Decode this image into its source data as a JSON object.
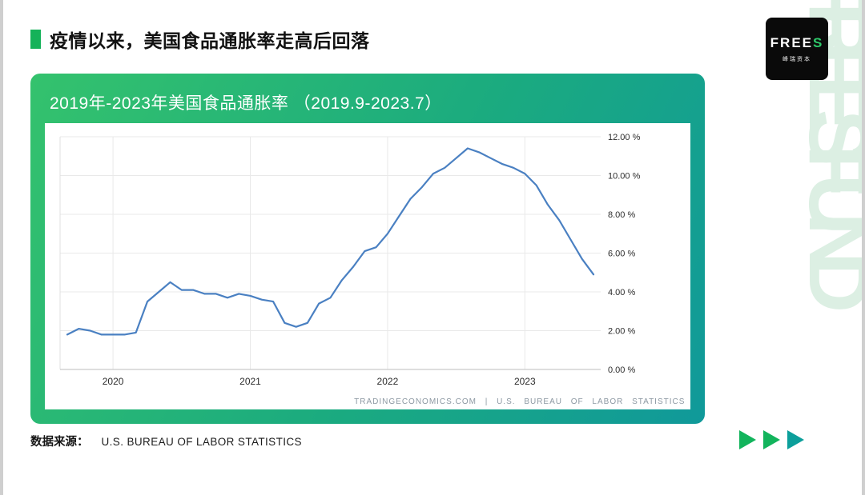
{
  "slide": {
    "title": "疫情以来，美国食品通胀率走高后回落"
  },
  "logo": {
    "brand_main": "FREE",
    "brand_accent": "S",
    "sub": "峰瑞资本"
  },
  "watermark": {
    "text": "FREES FUND"
  },
  "card": {
    "header": "2019年-2023年美国食品通胀率 （2019.9-2023.7）"
  },
  "footer": {
    "source_label": "数据来源：",
    "source_value": "U.S. BUREAU OF LABOR STATISTICS"
  },
  "colors": {
    "accent_green": "#15b259",
    "card_gradient": [
      "#34c26d",
      "#1bab7f",
      "#10999a"
    ],
    "watermark": "#dcefe3",
    "logo_accent": "#2ec96a",
    "arrows": [
      "#12b45c",
      "#12b45c",
      "#0c9f9b"
    ]
  },
  "chart_data": {
    "type": "line",
    "title": "2019年-2023年美国食品通胀率（2019.9-2023.7）",
    "xlabel": "",
    "ylabel": "",
    "ylim": [
      0,
      12
    ],
    "grid": true,
    "legend": "none",
    "y_axis_side": "right",
    "line_color": "#4a80c2",
    "x": [
      "2019-09",
      "2019-10",
      "2019-11",
      "2019-12",
      "2020-01",
      "2020-02",
      "2020-03",
      "2020-04",
      "2020-05",
      "2020-06",
      "2020-07",
      "2020-08",
      "2020-09",
      "2020-10",
      "2020-11",
      "2020-12",
      "2021-01",
      "2021-02",
      "2021-03",
      "2021-04",
      "2021-05",
      "2021-06",
      "2021-07",
      "2021-08",
      "2021-09",
      "2021-10",
      "2021-11",
      "2021-12",
      "2022-01",
      "2022-02",
      "2022-03",
      "2022-04",
      "2022-05",
      "2022-06",
      "2022-07",
      "2022-08",
      "2022-09",
      "2022-10",
      "2022-11",
      "2022-12",
      "2023-01",
      "2023-02",
      "2023-03",
      "2023-04",
      "2023-05",
      "2023-06",
      "2023-07"
    ],
    "values": [
      1.8,
      2.1,
      2.0,
      1.8,
      1.8,
      1.8,
      1.9,
      3.5,
      4.0,
      4.5,
      4.1,
      4.1,
      3.9,
      3.9,
      3.7,
      3.9,
      3.8,
      3.6,
      3.5,
      2.4,
      2.2,
      2.4,
      3.4,
      3.7,
      4.6,
      5.3,
      6.1,
      6.3,
      7.0,
      7.9,
      8.8,
      9.4,
      10.1,
      10.4,
      10.9,
      11.4,
      11.2,
      10.9,
      10.6,
      10.4,
      10.1,
      9.5,
      8.5,
      7.7,
      6.7,
      5.7,
      4.9
    ],
    "y_ticks": [
      0,
      2,
      4,
      6,
      8,
      10,
      12
    ],
    "y_tick_labels": [
      "0.00 %",
      "2.00 %",
      "4.00 %",
      "6.00 %",
      "8.00 %",
      "10.00 %",
      "12.00 %"
    ],
    "x_tick_positions": [
      4,
      16,
      28,
      40
    ],
    "x_tick_labels": [
      "2020",
      "2021",
      "2022",
      "2023"
    ],
    "source_note": "TRADINGECONOMICS.COM | U.S. BUREAU OF LABOR STATISTICS"
  }
}
